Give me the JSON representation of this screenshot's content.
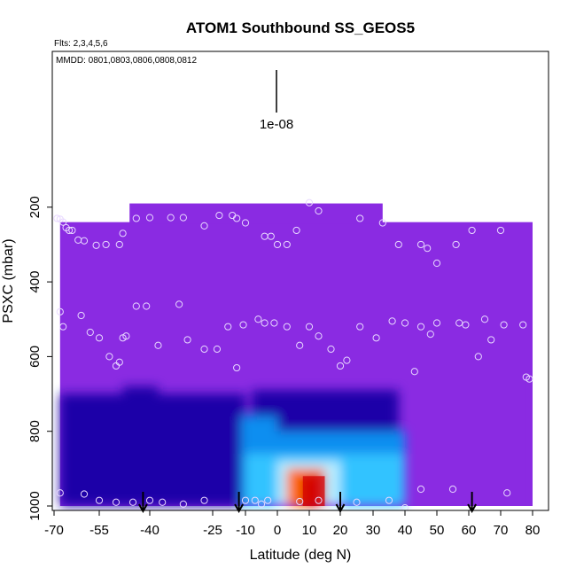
{
  "chart_data": {
    "type": "heatmap",
    "title": "ATOM1 Southbound SS_GEOS5",
    "notes": {
      "flights": "Flts: 2,3,4,5,6",
      "dates": "MMDD: 0801,0803,0806,0808,0812"
    },
    "scale_bar_label": "1e-08",
    "xlabel": "Latitude (deg N)",
    "ylabel": "PSXC (mbar)",
    "xlim": [
      -70,
      80
    ],
    "ylim": [
      1000,
      0
    ],
    "x_ticks": [
      -70,
      -55,
      -40,
      -25,
      -10,
      0,
      10,
      20,
      30,
      40,
      50,
      60,
      70,
      80
    ],
    "y_ticks": [
      200,
      400,
      600,
      800,
      1000
    ],
    "grid": false,
    "background_color": "#8a2be2",
    "arrow_latitudes": [
      -42,
      -13,
      20,
      61
    ],
    "field_regions": [
      {
        "lat": [
          -68,
          -10
        ],
        "p": [
          700,
          1000
        ],
        "level": 0.25
      },
      {
        "lat": [
          -48,
          -38
        ],
        "p": [
          680,
          1000
        ],
        "level": 0.3
      },
      {
        "lat": [
          -8,
          38
        ],
        "p": [
          690,
          1000
        ],
        "level": 0.3
      },
      {
        "lat": [
          -12,
          0
        ],
        "p": [
          760,
          1000
        ],
        "level": 0.45
      },
      {
        "lat": [
          -8,
          40
        ],
        "p": [
          800,
          1000
        ],
        "level": 0.5
      },
      {
        "lat": [
          -10,
          40
        ],
        "p": [
          860,
          1000
        ],
        "level": 0.55
      },
      {
        "lat": [
          0,
          20
        ],
        "p": [
          880,
          1000
        ],
        "level": 0.72
      },
      {
        "lat": [
          3,
          15
        ],
        "p": [
          900,
          1000
        ],
        "level": 0.88
      },
      {
        "lat": [
          8,
          15
        ],
        "p": [
          920,
          1000
        ],
        "level": 1.0
      }
    ],
    "sample_points": [
      [
        -69,
        230
      ],
      [
        -68,
        232
      ],
      [
        -67,
        240
      ],
      [
        -66,
        255
      ],
      [
        -65,
        262
      ],
      [
        -64,
        262
      ],
      [
        -62,
        288
      ],
      [
        -60,
        290
      ],
      [
        -56,
        302
      ],
      [
        -53,
        300
      ],
      [
        -49,
        300
      ],
      [
        -48,
        270
      ],
      [
        -44,
        230
      ],
      [
        -40,
        228
      ],
      [
        -35,
        228
      ],
      [
        -32,
        228
      ],
      [
        -27,
        250
      ],
      [
        -22,
        222
      ],
      [
        -16,
        222
      ],
      [
        -14,
        230
      ],
      [
        -10,
        242
      ],
      [
        -4,
        278
      ],
      [
        -2,
        278
      ],
      [
        0,
        300
      ],
      [
        3,
        300
      ],
      [
        6,
        262
      ],
      [
        10,
        188
      ],
      [
        13,
        210
      ],
      [
        26,
        230
      ],
      [
        33,
        242
      ],
      [
        38,
        300
      ],
      [
        45,
        300
      ],
      [
        47,
        310
      ],
      [
        50,
        350
      ],
      [
        56,
        300
      ],
      [
        61,
        262
      ],
      [
        70,
        262
      ],
      [
        -68,
        480
      ],
      [
        -67,
        520
      ],
      [
        -61,
        490
      ],
      [
        -58,
        535
      ],
      [
        -55,
        550
      ],
      [
        -52,
        600
      ],
      [
        -50,
        625
      ],
      [
        -49,
        615
      ],
      [
        -48,
        550
      ],
      [
        -47,
        545
      ],
      [
        -44,
        465
      ],
      [
        -41,
        465
      ],
      [
        -38,
        570
      ],
      [
        -33,
        460
      ],
      [
        -31,
        555
      ],
      [
        -27,
        580
      ],
      [
        -23,
        580
      ],
      [
        -18,
        520
      ],
      [
        -14,
        630
      ],
      [
        -11,
        515
      ],
      [
        -6,
        500
      ],
      [
        -4,
        510
      ],
      [
        -1,
        510
      ],
      [
        3,
        520
      ],
      [
        7,
        570
      ],
      [
        10,
        520
      ],
      [
        13,
        545
      ],
      [
        17,
        580
      ],
      [
        20,
        625
      ],
      [
        22,
        610
      ],
      [
        26,
        520
      ],
      [
        31,
        550
      ],
      [
        36,
        505
      ],
      [
        40,
        510
      ],
      [
        43,
        640
      ],
      [
        45,
        520
      ],
      [
        48,
        540
      ],
      [
        50,
        510
      ],
      [
        57,
        510
      ],
      [
        59,
        515
      ],
      [
        63,
        600
      ],
      [
        65,
        500
      ],
      [
        67,
        555
      ],
      [
        71,
        515
      ],
      [
        77,
        515
      ],
      [
        78,
        655
      ],
      [
        79,
        660
      ],
      [
        -68,
        965
      ],
      [
        -60,
        968
      ],
      [
        -55,
        985
      ],
      [
        -50,
        990
      ],
      [
        -45,
        990
      ],
      [
        -40,
        985
      ],
      [
        -37,
        990
      ],
      [
        -32,
        995
      ],
      [
        -27,
        985
      ],
      [
        -10,
        985
      ],
      [
        -7,
        985
      ],
      [
        -5,
        995
      ],
      [
        -3,
        985
      ],
      [
        7,
        988
      ],
      [
        13,
        985
      ],
      [
        25,
        990
      ],
      [
        35,
        985
      ],
      [
        40,
        1005
      ],
      [
        45,
        955
      ],
      [
        55,
        955
      ],
      [
        72,
        965
      ]
    ]
  }
}
